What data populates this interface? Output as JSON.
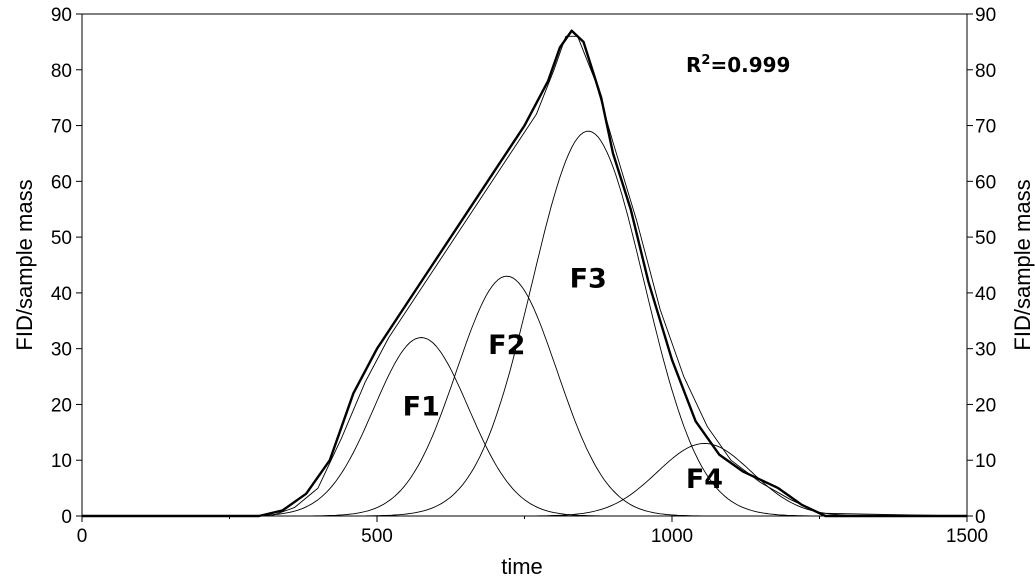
{
  "chart_data": {
    "type": "line",
    "title": "",
    "xlabel": "time",
    "ylabel": "FID/sample mass",
    "y2label": "FID/sample mass",
    "xlim": [
      0,
      1500
    ],
    "ylim": [
      0,
      90
    ],
    "xticks": [
      0,
      500,
      1000,
      1500
    ],
    "yticks": [
      0,
      10,
      20,
      30,
      40,
      50,
      60,
      70,
      80,
      90
    ],
    "grid": false,
    "legend": "none",
    "annotation": {
      "prefix": "R",
      "sup": "2",
      "suffix": "=0.999"
    },
    "series": [
      {
        "role": "measured",
        "points": [
          [
            0,
            0
          ],
          [
            300,
            0
          ],
          [
            340,
            1
          ],
          [
            380,
            4
          ],
          [
            420,
            10
          ],
          [
            460,
            22
          ],
          [
            500,
            30
          ],
          [
            550,
            38
          ],
          [
            600,
            46
          ],
          [
            650,
            54
          ],
          [
            700,
            62
          ],
          [
            750,
            70
          ],
          [
            790,
            78
          ],
          [
            810,
            84
          ],
          [
            830,
            87
          ],
          [
            850,
            85
          ],
          [
            880,
            75
          ],
          [
            900,
            65
          ],
          [
            930,
            55
          ],
          [
            960,
            42
          ],
          [
            1000,
            28
          ],
          [
            1040,
            17
          ],
          [
            1080,
            11
          ],
          [
            1120,
            8
          ],
          [
            1180,
            5
          ],
          [
            1220,
            2
          ],
          [
            1260,
            0
          ],
          [
            1500,
            0
          ]
        ]
      },
      {
        "role": "fit",
        "points": [
          [
            0,
            0
          ],
          [
            320,
            0
          ],
          [
            360,
            1.5
          ],
          [
            400,
            5
          ],
          [
            440,
            14
          ],
          [
            480,
            24
          ],
          [
            520,
            32
          ],
          [
            570,
            40
          ],
          [
            620,
            48
          ],
          [
            670,
            56
          ],
          [
            720,
            64
          ],
          [
            770,
            72
          ],
          [
            800,
            80
          ],
          [
            820,
            86
          ],
          [
            840,
            86
          ],
          [
            870,
            78
          ],
          [
            900,
            67
          ],
          [
            940,
            53
          ],
          [
            980,
            37
          ],
          [
            1020,
            25
          ],
          [
            1060,
            16
          ],
          [
            1100,
            10
          ],
          [
            1150,
            6
          ],
          [
            1200,
            3
          ],
          [
            1250,
            0.5
          ],
          [
            1500,
            0
          ]
        ]
      },
      {
        "name": "F1",
        "shape": "gaussian",
        "center": 575,
        "amplitude": 32,
        "sigma": 80
      },
      {
        "name": "F2",
        "shape": "gaussian",
        "center": 720,
        "amplitude": 43,
        "sigma": 85
      },
      {
        "name": "F3",
        "shape": "gaussian",
        "center": 858,
        "amplitude": 69,
        "sigma": 95
      },
      {
        "name": "F4",
        "shape": "gaussian",
        "center": 1055,
        "amplitude": 13,
        "sigma": 80
      }
    ]
  }
}
